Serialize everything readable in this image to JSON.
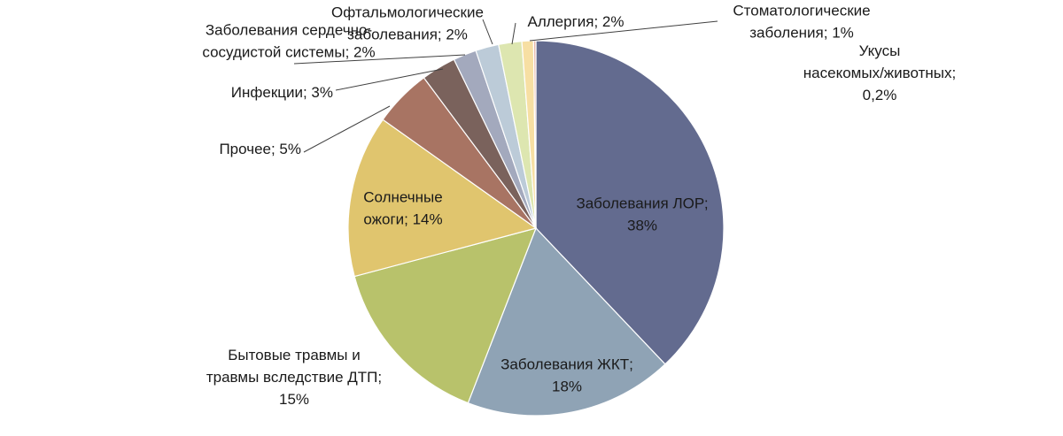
{
  "chart_data": {
    "type": "pie",
    "title": "",
    "start_angle_deg": 0,
    "direction": "clockwise",
    "legend": "none",
    "slices": [
      {
        "name": "Заболевания ЛОР",
        "value": 38,
        "label": [
          "Заболевания ЛОР;",
          "38%"
        ],
        "color": "#636b8f"
      },
      {
        "name": "Заболевания ЖКТ",
        "value": 18,
        "label": [
          "Заболевания ЖКТ;",
          "18%"
        ],
        "color": "#8fa3b5"
      },
      {
        "name": "Бытовые травмы и травмы вследствие ДТП",
        "value": 15,
        "label": [
          "Бытовые травмы и",
          "травмы вследствие ДТП;",
          "15%"
        ],
        "color": "#b8c26b"
      },
      {
        "name": "Солнечные ожоги",
        "value": 14,
        "label": [
          "Солнечные",
          "ожоги; 14%"
        ],
        "color": "#e0c56e"
      },
      {
        "name": "Прочее",
        "value": 5,
        "label": [
          "Прочее; 5%"
        ],
        "color": "#a87463"
      },
      {
        "name": "Инфекции",
        "value": 3,
        "label": [
          "Инфекции; 3%"
        ],
        "color": "#7a625c"
      },
      {
        "name": "Заболевания сердечно-сосудистой системы",
        "value": 2,
        "label": [
          "Заболевания сердечно-",
          "сосудистой системы; 2%"
        ],
        "color": "#a3a9bd"
      },
      {
        "name": "Офтальмологические заболевания",
        "value": 2,
        "label": [
          "Офтальмологические",
          "заболевания; 2%"
        ],
        "color": "#bccbd8"
      },
      {
        "name": "Аллергия",
        "value": 2,
        "label": [
          "Аллергия; 2%"
        ],
        "color": "#dde6b0"
      },
      {
        "name": "Стоматологические заболения",
        "value": 1,
        "label": [
          "Стоматологические",
          "заболения; 1%"
        ],
        "color": "#f7dfa3"
      },
      {
        "name": "Укусы насекомых/животных",
        "value": 0.2,
        "label": [
          "Укусы",
          "насекомых/животных;",
          "0,2%"
        ],
        "color": "#e8b8a8"
      }
    ]
  }
}
